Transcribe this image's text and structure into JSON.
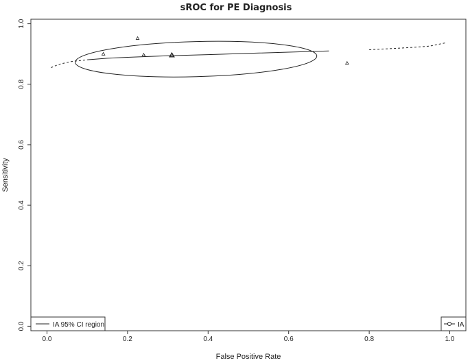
{
  "chart_data": {
    "type": "scatter",
    "title": "sROC for PE Diagnosis",
    "xlabel": "False Positive Rate",
    "ylabel": "Sensitivity",
    "xlim": [
      -0.04,
      1.04
    ],
    "ylim": [
      -0.015,
      1.015
    ],
    "xticks": [
      0.0,
      0.2,
      0.4,
      0.6,
      0.8,
      1.0
    ],
    "yticks": [
      0.0,
      0.2,
      0.4,
      0.6,
      0.8,
      1.0
    ],
    "xtick_labels": [
      "0.0",
      "0.2",
      "0.4",
      "0.6",
      "0.8",
      "1.0"
    ],
    "ytick_labels": [
      "0.0",
      "0.2",
      "0.4",
      "0.6",
      "0.8",
      "1.0"
    ],
    "grid": false,
    "studies": [
      {
        "x": 0.14,
        "y": 0.9
      },
      {
        "x": 0.225,
        "y": 0.952
      },
      {
        "x": 0.24,
        "y": 0.897
      },
      {
        "x": 0.745,
        "y": 0.87
      }
    ],
    "summary_point": {
      "x": 0.31,
      "y": 0.896
    },
    "sroc_curve": {
      "x": [
        0.01,
        0.03,
        0.06,
        0.1,
        0.15,
        0.2,
        0.3,
        0.4,
        0.5,
        0.6,
        0.7,
        0.8,
        0.9,
        0.95,
        0.99
      ],
      "y": [
        0.855,
        0.866,
        0.875,
        0.881,
        0.886,
        0.889,
        0.894,
        0.898,
        0.902,
        0.906,
        0.91,
        0.914,
        0.921,
        0.926,
        0.937
      ],
      "solid_range": [
        0.1,
        0.75
      ]
    },
    "confidence_region": {
      "cx": 0.37,
      "cy": 0.883,
      "rx": 0.3,
      "ry": 0.058,
      "angle_deg": 1.5
    },
    "legends": [
      {
        "position": "bottom-left",
        "label": "IA 95% CI region",
        "symbol": "line"
      },
      {
        "position": "bottom-right",
        "label": "IA",
        "symbol": "line-circle"
      }
    ]
  }
}
